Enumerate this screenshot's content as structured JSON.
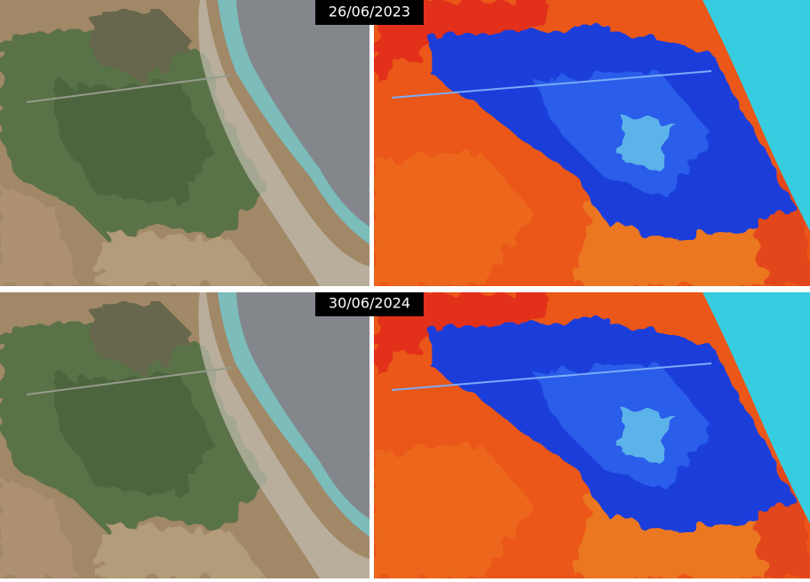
{
  "panels": [
    {
      "date": "26/06/2023"
    },
    {
      "date": "30/06/2024"
    }
  ]
}
